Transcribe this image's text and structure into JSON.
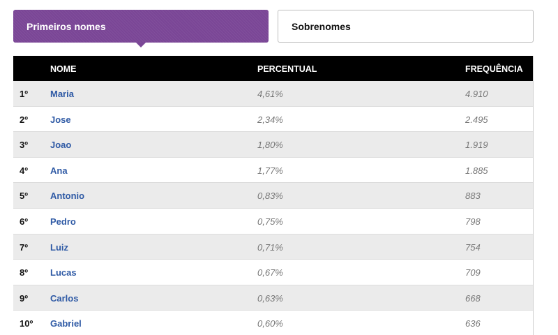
{
  "tabs": {
    "active_label": "Primeiros nomes",
    "inactive_label": "Sobrenomes"
  },
  "table": {
    "headers": {
      "rank": "",
      "name": "NOME",
      "percent": "PERCENTUAL",
      "frequency": "FREQUÊNCIA"
    },
    "rows": [
      {
        "rank": "1º",
        "name": "Maria",
        "percent": "4,61%",
        "frequency": "4.910"
      },
      {
        "rank": "2º",
        "name": "Jose",
        "percent": "2,34%",
        "frequency": "2.495"
      },
      {
        "rank": "3º",
        "name": "Joao",
        "percent": "1,80%",
        "frequency": "1.919"
      },
      {
        "rank": "4º",
        "name": "Ana",
        "percent": "1,77%",
        "frequency": "1.885"
      },
      {
        "rank": "5º",
        "name": "Antonio",
        "percent": "0,83%",
        "frequency": "883"
      },
      {
        "rank": "6º",
        "name": "Pedro",
        "percent": "0,75%",
        "frequency": "798"
      },
      {
        "rank": "7º",
        "name": "Luiz",
        "percent": "0,71%",
        "frequency": "754"
      },
      {
        "rank": "8º",
        "name": "Lucas",
        "percent": "0,67%",
        "frequency": "709"
      },
      {
        "rank": "9º",
        "name": "Carlos",
        "percent": "0,63%",
        "frequency": "668"
      },
      {
        "rank": "10º",
        "name": "Gabriel",
        "percent": "0,60%",
        "frequency": "636"
      }
    ]
  },
  "colors": {
    "accent": "#7a4696",
    "header_bg": "#000000",
    "link": "#2f5aa5",
    "row_alt": "#ebebeb"
  }
}
